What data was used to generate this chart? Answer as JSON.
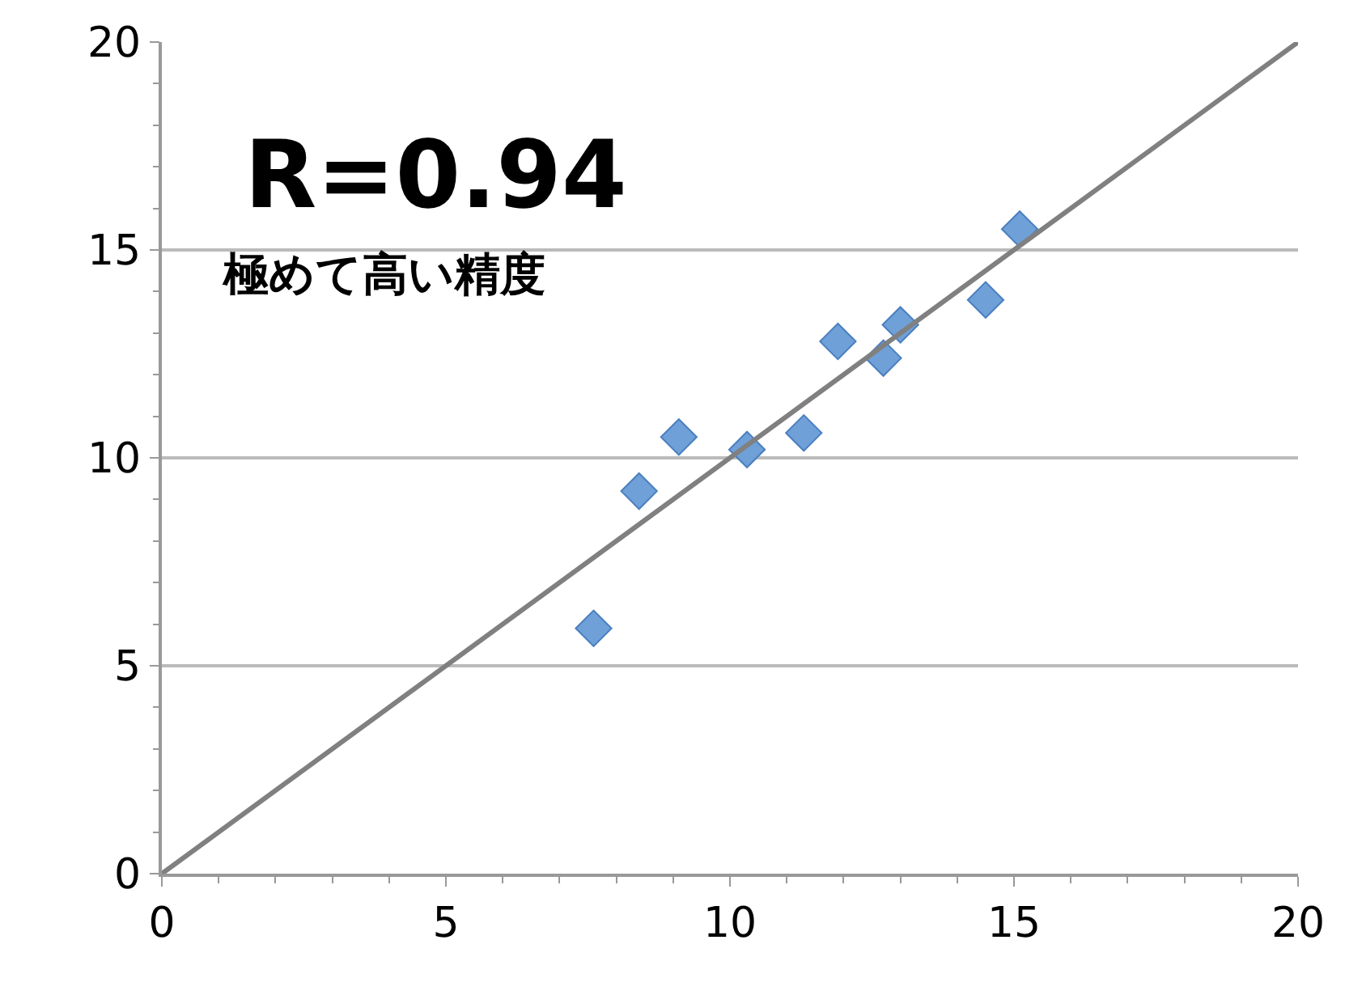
{
  "chart_data": {
    "type": "scatter",
    "series": [
      {
        "color": "#6fa0d8",
        "marker": "diamond",
        "x": [
          7.6,
          8.4,
          9.1,
          10.3,
          11.3,
          11.9,
          12.7,
          13.0,
          14.5,
          15.1
        ],
        "values": [
          5.9,
          9.2,
          10.5,
          10.2,
          10.6,
          12.8,
          12.4,
          13.2,
          13.8,
          15.5
        ]
      },
      {
        "type": "line",
        "color": "#808080",
        "marker": "none",
        "line_style": "solid",
        "x": [
          0,
          20
        ],
        "values": [
          0,
          20
        ]
      }
    ],
    "annotations": [
      "R=0.94",
      "極めて高い精度"
    ],
    "xlim": [
      0,
      20
    ],
    "ylim": [
      0,
      20
    ],
    "xticks": [
      0,
      5,
      10,
      15,
      20
    ],
    "yticks": [
      0,
      5,
      10,
      15,
      20
    ],
    "grid": "y",
    "legend": false
  }
}
